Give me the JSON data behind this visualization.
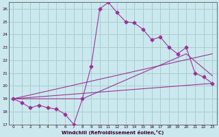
{
  "xlabel": "Windchill (Refroidissement éolien,°C)",
  "bg_color": "#cce8ef",
  "grid_color": "#aacccc",
  "line_color": "#993399",
  "xlim": [
    -0.5,
    23.5
  ],
  "ylim": [
    17,
    26.5
  ],
  "xticks": [
    0,
    1,
    2,
    3,
    4,
    5,
    6,
    7,
    8,
    9,
    10,
    11,
    12,
    13,
    14,
    15,
    16,
    17,
    18,
    19,
    20,
    21,
    22,
    23
  ],
  "yticks": [
    17,
    18,
    19,
    20,
    21,
    22,
    23,
    24,
    25,
    26
  ],
  "line1_x": [
    0,
    1,
    2,
    3,
    4,
    5,
    6,
    7,
    8,
    9,
    10,
    11,
    12,
    13,
    14,
    15,
    16,
    17,
    18,
    19,
    20,
    21,
    22,
    23
  ],
  "line1_y": [
    19.0,
    18.7,
    18.3,
    18.5,
    18.3,
    18.2,
    17.8,
    17.0,
    19.0,
    21.5,
    26.0,
    26.5,
    25.7,
    25.0,
    24.9,
    24.4,
    23.6,
    23.8,
    23.0,
    22.5,
    23.0,
    21.0,
    20.7,
    20.2
  ],
  "line2_x": [
    0,
    23
  ],
  "line2_y": [
    19.0,
    22.5
  ],
  "line3_x": [
    0,
    8,
    20,
    23
  ],
  "line3_y": [
    19.0,
    19.0,
    22.5,
    20.8
  ],
  "line4_x": [
    0,
    23
  ],
  "line4_y": [
    19.0,
    20.2
  ]
}
